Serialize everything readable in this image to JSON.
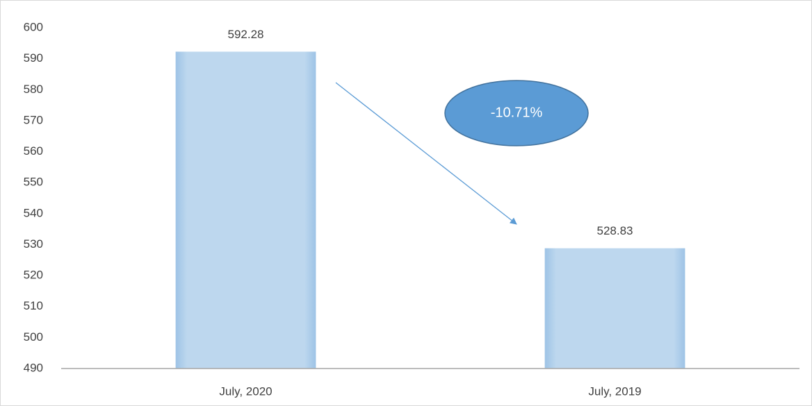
{
  "chart_data": {
    "type": "bar",
    "categories": [
      "July, 2020",
      "July, 2019"
    ],
    "values": [
      592.28,
      528.83
    ],
    "color": "#bdd7ee",
    "ylim": [
      490,
      600
    ],
    "yticks": [
      490,
      500,
      510,
      520,
      530,
      540,
      550,
      560,
      570,
      580,
      590,
      600
    ],
    "grid": false,
    "annotation": "-10.71%"
  }
}
